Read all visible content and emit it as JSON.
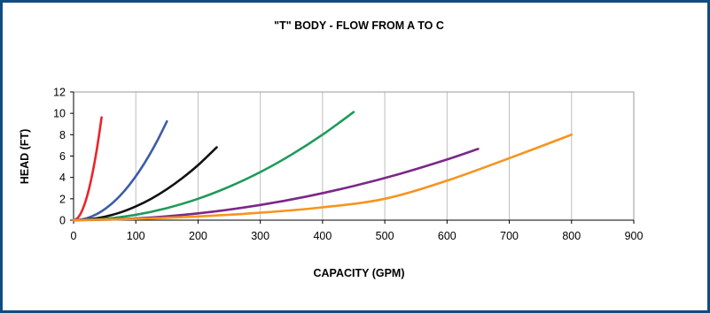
{
  "chart_data": {
    "type": "line",
    "title": "\"T\" BODY - FLOW FROM A TO C",
    "xlabel": "CAPACITY (GPM)",
    "ylabel": "HEAD (FT)",
    "xlim": [
      0,
      900
    ],
    "ylim": [
      0,
      12
    ],
    "xticks": [
      "0",
      "100",
      "200",
      "300",
      "400",
      "500",
      "600",
      "700",
      "800",
      "900"
    ],
    "yticks": [
      "0",
      "2",
      "4",
      "6",
      "8",
      "10",
      "12"
    ],
    "grid": "vertical",
    "legend": "none",
    "series": [
      {
        "color": "#e8252b",
        "x": [
          0,
          5,
          10,
          15,
          20,
          25,
          30,
          35,
          40,
          45
        ],
        "y": [
          0,
          0.12,
          0.47,
          1.07,
          1.9,
          2.97,
          4.28,
          5.82,
          7.6,
          9.62
        ]
      },
      {
        "color": "#3e5bac",
        "x": [
          0,
          15,
          30,
          45,
          60,
          75,
          90,
          105,
          120,
          135,
          150
        ],
        "y": [
          0,
          0.09,
          0.37,
          0.83,
          1.48,
          2.31,
          3.33,
          4.53,
          5.92,
          7.49,
          9.25
        ]
      },
      {
        "color": "#111111",
        "x": [
          0,
          25,
          50,
          75,
          100,
          125,
          150,
          175,
          200,
          230
        ],
        "y": [
          0,
          0.08,
          0.32,
          0.72,
          1.29,
          2.01,
          2.9,
          3.95,
          5.15,
          6.82
        ]
      },
      {
        "color": "#1e9a5a",
        "x": [
          0,
          50,
          100,
          150,
          200,
          250,
          300,
          350,
          400,
          450
        ],
        "y": [
          0,
          0.12,
          0.5,
          1.13,
          2.0,
          3.13,
          4.5,
          6.13,
          8.0,
          10.12
        ]
      },
      {
        "color": "#7b2889",
        "x": [
          0,
          75,
          150,
          225,
          300,
          375,
          450,
          525,
          600,
          650
        ],
        "y": [
          0,
          0.09,
          0.36,
          0.8,
          1.42,
          2.22,
          3.2,
          4.35,
          5.68,
          6.67
        ]
      },
      {
        "color": "#f7941d",
        "x": [
          0,
          100,
          200,
          300,
          400,
          500,
          600,
          700,
          800
        ],
        "y": [
          0,
          0.12,
          0.35,
          0.7,
          1.2,
          2.0,
          3.7,
          5.8,
          8.0
        ]
      }
    ]
  }
}
